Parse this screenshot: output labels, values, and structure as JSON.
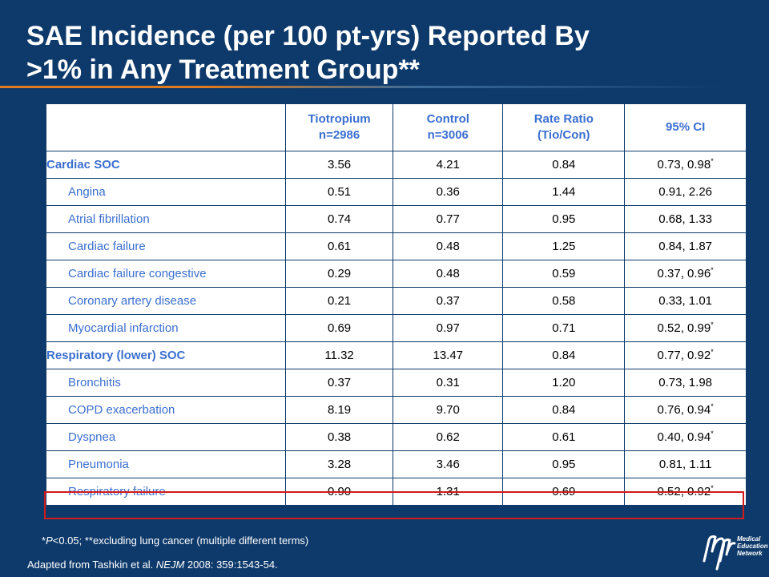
{
  "title": {
    "line1": "SAE Incidence (per 100 pt-yrs) Reported By",
    "line2": ">1%  in Any Treatment Group**"
  },
  "table": {
    "headers": [
      {
        "line1": "",
        "line2": ""
      },
      {
        "line1": "Tiotropium",
        "line2": "n=2986"
      },
      {
        "line1": "Control",
        "line2": "n=3006"
      },
      {
        "line1": "Rate Ratio",
        "line2": "(Tio/Con)"
      },
      {
        "line1": "95% CI",
        "line2": ""
      }
    ],
    "rows": [
      {
        "label": "Cardiac SOC",
        "tio": "3.56",
        "con": "4.21",
        "ratio": "0.84",
        "ci": "0.73, 0.98",
        "sig": "*"
      },
      {
        "label": "Angina",
        "tio": "0.51",
        "con": "0.36",
        "ratio": "1.44",
        "ci": "0.91, 2.26",
        "sig": ""
      },
      {
        "label": "Atrial fibrillation",
        "tio": "0.74",
        "con": "0.77",
        "ratio": "0.95",
        "ci": "0.68, 1.33",
        "sig": ""
      },
      {
        "label": "Cardiac failure",
        "tio": "0.61",
        "con": "0.48",
        "ratio": "1.25",
        "ci": "0.84, 1.87",
        "sig": ""
      },
      {
        "label": "Cardiac failure congestive",
        "tio": "0.29",
        "con": "0.48",
        "ratio": "0.59",
        "ci": "0.37, 0.96",
        "sig": "*"
      },
      {
        "label": "Coronary artery disease",
        "tio": "0.21",
        "con": "0.37",
        "ratio": "0.58",
        "ci": "0.33, 1.01",
        "sig": ""
      },
      {
        "label": "Myocardial infarction",
        "tio": "0.69",
        "con": "0.97",
        "ratio": "0.71",
        "ci": "0.52, 0.99",
        "sig": "*"
      },
      {
        "label": "Respiratory (lower) SOC",
        "tio": "11.32",
        "con": "13.47",
        "ratio": "0.84",
        "ci": "0.77, 0.92",
        "sig": "*"
      },
      {
        "label": "Bronchitis",
        "tio": "0.37",
        "con": "0.31",
        "ratio": "1.20",
        "ci": "0.73, 1.98",
        "sig": ""
      },
      {
        "label": "COPD exacerbation",
        "tio": "8.19",
        "con": "9.70",
        "ratio": "0.84",
        "ci": "0.76, 0.94",
        "sig": "*"
      },
      {
        "label": "Dyspnea",
        "tio": "0.38",
        "con": "0.62",
        "ratio": "0.61",
        "ci": "0.40, 0.94",
        "sig": "*"
      },
      {
        "label": "Pneumonia",
        "tio": "3.28",
        "con": "3.46",
        "ratio": "0.95",
        "ci": "0.81, 1.11",
        "sig": ""
      },
      {
        "label": "Respiratory failure",
        "tio": "0.90",
        "con": "1.31",
        "ratio": "0.69",
        "ci": "0.52, 0.92",
        "sig": "*"
      }
    ]
  },
  "footnote": {
    "star": "*",
    "p": "P",
    "rest": "<0.05;  **excluding lung cancer (multiple different terms)"
  },
  "source": {
    "prefix": "Adapted from Tashkin et al. ",
    "journal": "NEJM",
    "suffix": " 2008: 359:1543-54."
  },
  "logo": {
    "line1": "Medical",
    "line2": "Education",
    "line3": "Network"
  },
  "colors": {
    "background": "#0e3a6b",
    "accent": "#e07a1c",
    "label_blue": "#3b6fd0",
    "highlight_red": "#d41a1a"
  }
}
